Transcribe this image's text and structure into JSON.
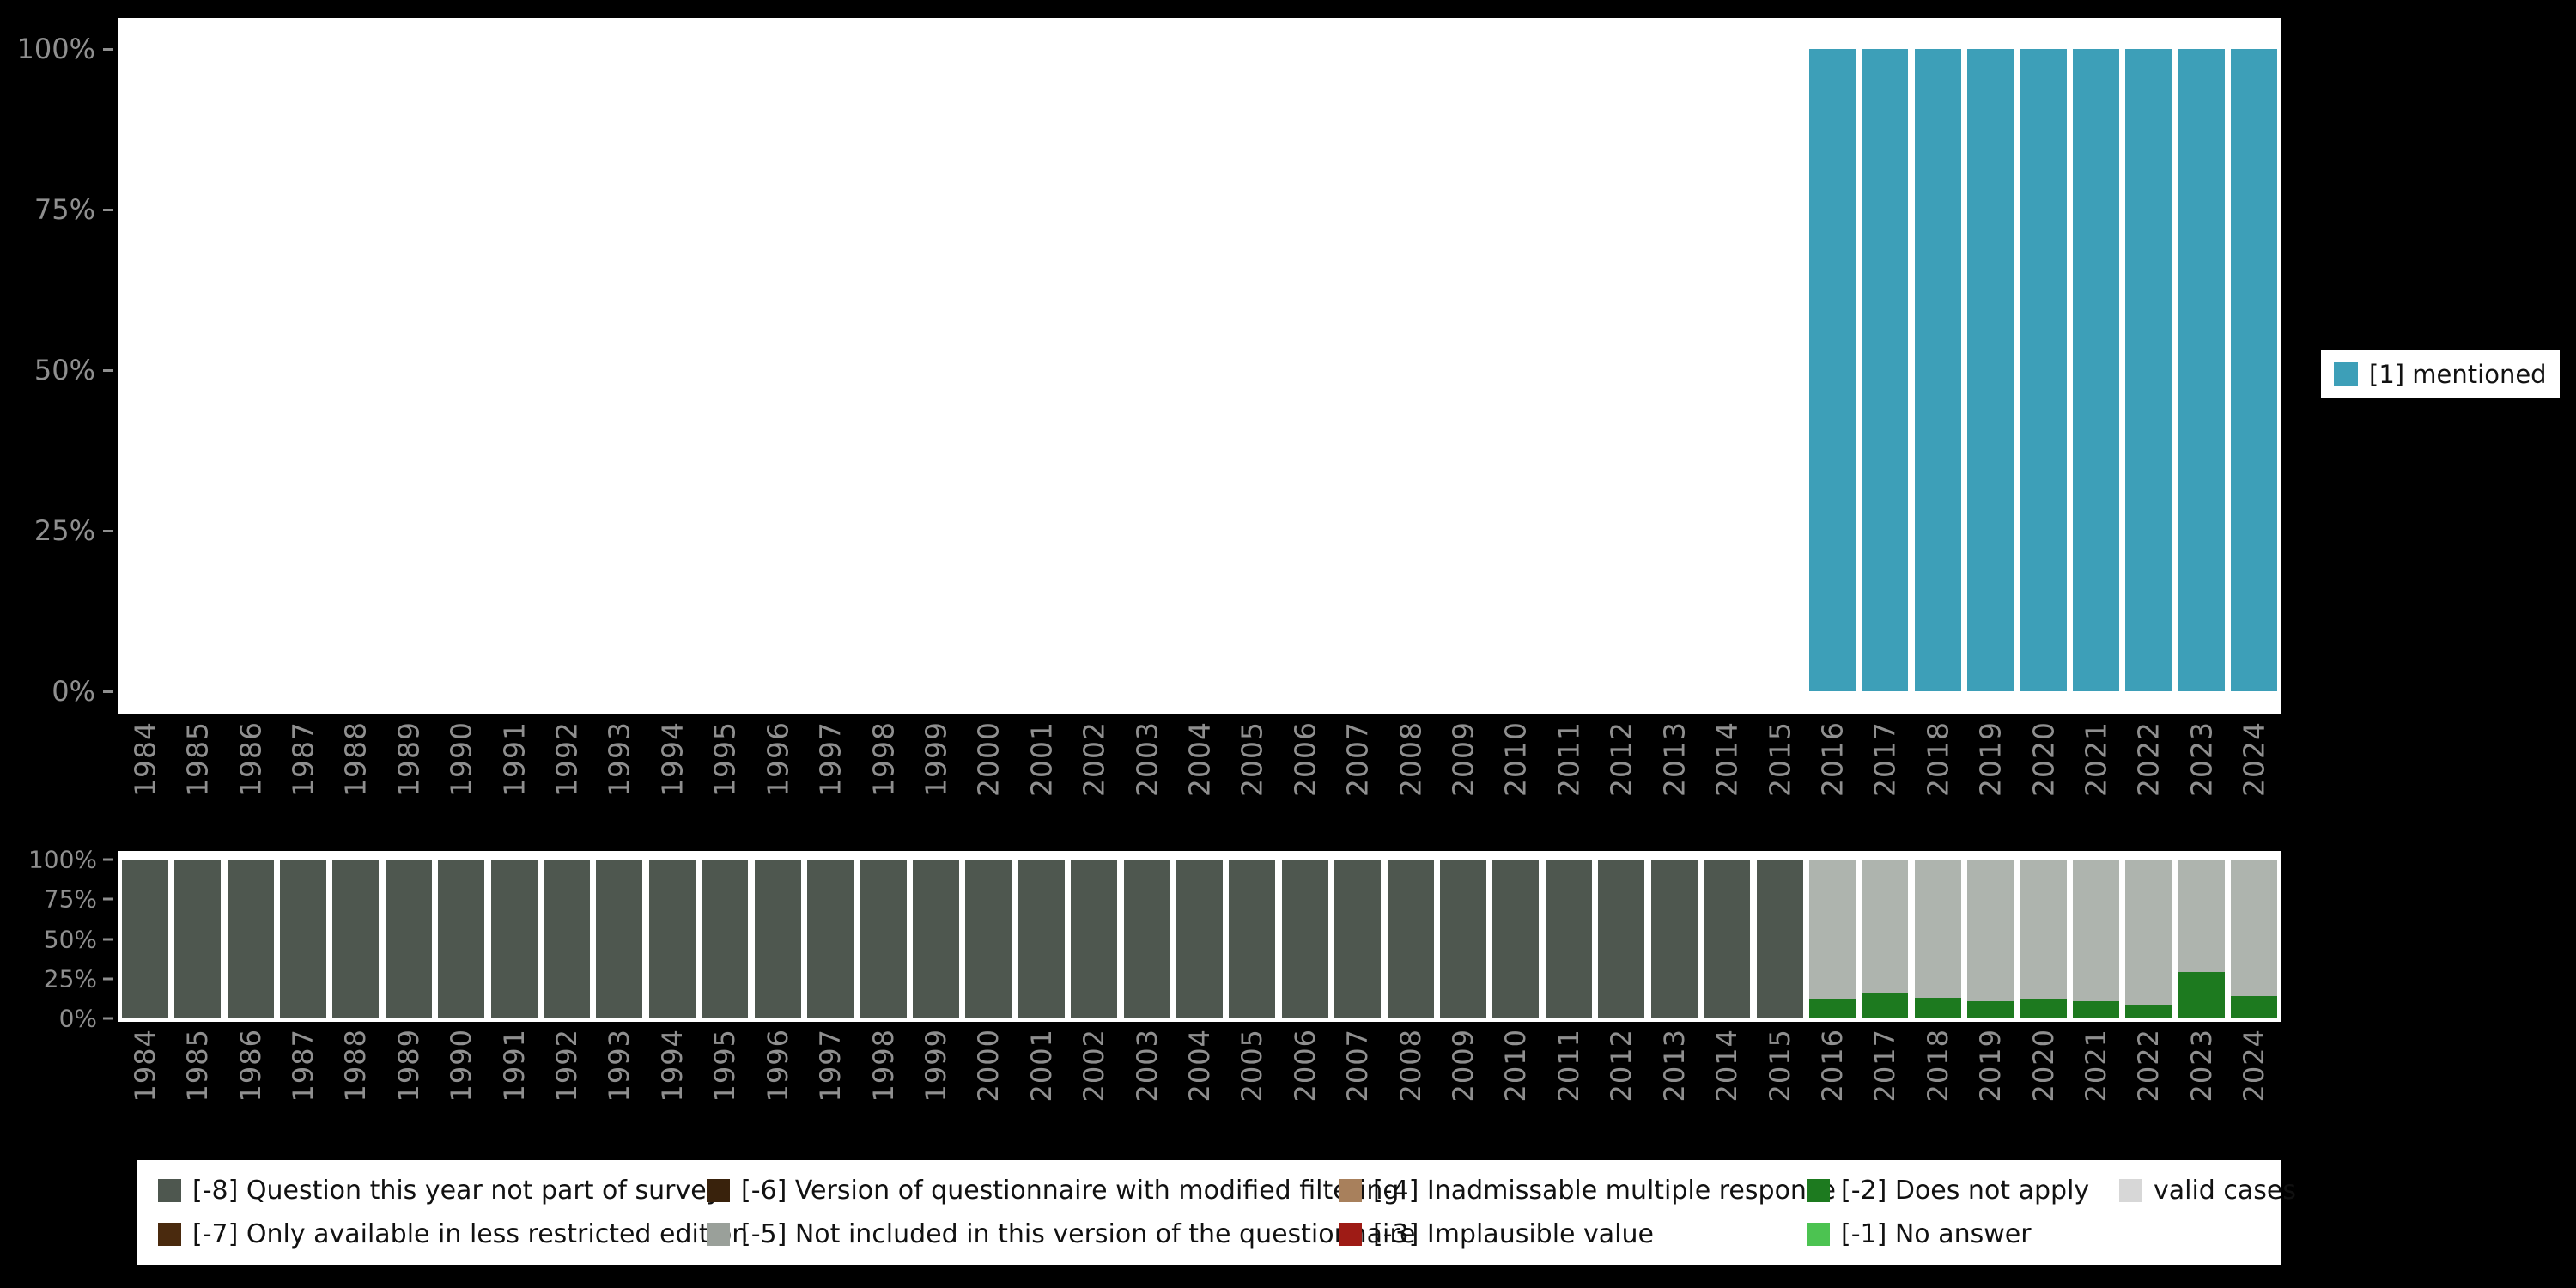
{
  "colors": {
    "background": "#000000",
    "panel": "#ffffff",
    "axis_text": "#8f8f8f",
    "legend_text": "#111111"
  },
  "right_legend": {
    "label": "[1] mentioned",
    "color": "#3d9fb8"
  },
  "chart_data": [
    {
      "id": "top",
      "type": "bar",
      "stacked": true,
      "units": "percent",
      "title": "",
      "xlabel": "",
      "ylabel": "",
      "ylim": [
        0,
        100
      ],
      "grid": false,
      "legend_position": "right",
      "yticks": [
        {
          "label": "0%",
          "pos": 0
        },
        {
          "label": "25%",
          "pos": 25
        },
        {
          "label": "50%",
          "pos": 50
        },
        {
          "label": "75%",
          "pos": 75
        },
        {
          "label": "100%",
          "pos": 100
        }
      ],
      "categories": [
        "1984",
        "1985",
        "1986",
        "1987",
        "1988",
        "1989",
        "1990",
        "1991",
        "1992",
        "1993",
        "1994",
        "1995",
        "1996",
        "1997",
        "1998",
        "1999",
        "2000",
        "2001",
        "2002",
        "2003",
        "2004",
        "2005",
        "2006",
        "2007",
        "2008",
        "2009",
        "2010",
        "2011",
        "2012",
        "2013",
        "2014",
        "2015",
        "2016",
        "2017",
        "2018",
        "2019",
        "2020",
        "2021",
        "2022",
        "2023",
        "2024"
      ],
      "series": [
        {
          "name": "[1] mentioned",
          "color": "#3d9fb8",
          "values": [
            0,
            0,
            0,
            0,
            0,
            0,
            0,
            0,
            0,
            0,
            0,
            0,
            0,
            0,
            0,
            0,
            0,
            0,
            0,
            0,
            0,
            0,
            0,
            0,
            0,
            0,
            0,
            0,
            0,
            0,
            0,
            0,
            100,
            100,
            100,
            100,
            100,
            100,
            100,
            100,
            100
          ]
        }
      ]
    },
    {
      "id": "bottom",
      "type": "bar",
      "stacked": true,
      "units": "percent",
      "title": "",
      "xlabel": "",
      "ylabel": "",
      "ylim": [
        0,
        100
      ],
      "grid": false,
      "legend_position": "bottom",
      "yticks": [
        {
          "label": "0%",
          "pos": 0
        },
        {
          "label": "25%",
          "pos": 25
        },
        {
          "label": "50%",
          "pos": 50
        },
        {
          "label": "75%",
          "pos": 75
        },
        {
          "label": "100%",
          "pos": 100
        }
      ],
      "categories": [
        "1984",
        "1985",
        "1986",
        "1987",
        "1988",
        "1989",
        "1990",
        "1991",
        "1992",
        "1993",
        "1994",
        "1995",
        "1996",
        "1997",
        "1998",
        "1999",
        "2000",
        "2001",
        "2002",
        "2003",
        "2004",
        "2005",
        "2006",
        "2007",
        "2008",
        "2009",
        "2010",
        "2011",
        "2012",
        "2013",
        "2014",
        "2015",
        "2016",
        "2017",
        "2018",
        "2019",
        "2020",
        "2021",
        "2022",
        "2023",
        "2024"
      ],
      "series": [
        {
          "name": "[-8] Question this year not part of survey",
          "color": "#4e574f",
          "values": [
            100,
            100,
            100,
            100,
            100,
            100,
            100,
            100,
            100,
            100,
            100,
            100,
            100,
            100,
            100,
            100,
            100,
            100,
            100,
            100,
            100,
            100,
            100,
            100,
            100,
            100,
            100,
            100,
            100,
            100,
            100,
            100,
            0,
            0,
            0,
            0,
            0,
            0,
            0,
            0,
            0
          ]
        },
        {
          "name": "[-2] Does not apply",
          "color": "#1d7a1f",
          "values": [
            0,
            0,
            0,
            0,
            0,
            0,
            0,
            0,
            0,
            0,
            0,
            0,
            0,
            0,
            0,
            0,
            0,
            0,
            0,
            0,
            0,
            0,
            0,
            0,
            0,
            0,
            0,
            0,
            0,
            0,
            0,
            0,
            12,
            16,
            13,
            11,
            12,
            11,
            8,
            29,
            14
          ]
        },
        {
          "name": "valid cases",
          "color": "#aeb4ae",
          "values": [
            0,
            0,
            0,
            0,
            0,
            0,
            0,
            0,
            0,
            0,
            0,
            0,
            0,
            0,
            0,
            0,
            0,
            0,
            0,
            0,
            0,
            0,
            0,
            0,
            0,
            0,
            0,
            0,
            0,
            0,
            0,
            0,
            88,
            84,
            87,
            89,
            88,
            89,
            92,
            71,
            86
          ]
        }
      ]
    }
  ],
  "bottom_legend": {
    "columns": [
      [
        {
          "label": "[-8] Question this year not part of survey",
          "color": "#4e574f"
        },
        {
          "label": "[-7] Only available in less restricted edition",
          "color": "#4a2a0e"
        }
      ],
      [
        {
          "label": "[-6] Version of questionnaire with modified filtering",
          "color": "#39220c"
        },
        {
          "label": "[-5] Not included in this version of the questionnaire",
          "color": "#9aa09a"
        }
      ],
      [
        {
          "label": "[-4] Inadmissable multiple response",
          "color": "#a8805c"
        },
        {
          "label": "[-3] Implausible value",
          "color": "#9e1b15"
        }
      ],
      [
        {
          "label": "[-2] Does not apply",
          "color": "#1d7a1f"
        },
        {
          "label": "[-1] No answer",
          "color": "#4cc351"
        }
      ],
      [
        {
          "label": "valid cases",
          "color": "#d7d7d7"
        }
      ]
    ]
  }
}
